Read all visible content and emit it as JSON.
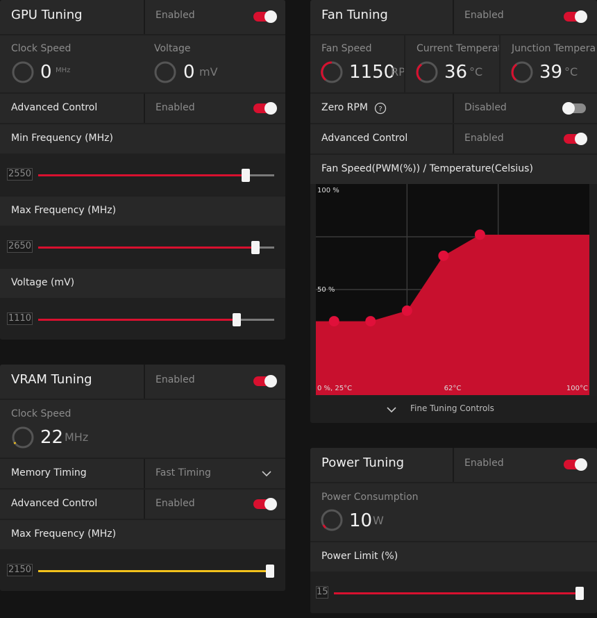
{
  "gpu": {
    "title": "GPU Tuning",
    "status": "Enabled",
    "clock_label": "Clock Speed",
    "clock_value": "0",
    "clock_unit": "MHz",
    "voltage_label": "Voltage",
    "voltage_value": "0",
    "voltage_unit": "mV",
    "advanced_label": "Advanced Control",
    "advanced_status": "Enabled",
    "min_freq_label": "Min Frequency (MHz)",
    "min_freq_value": "2550",
    "min_freq_fraction": 0.88,
    "max_freq_label": "Max Frequency (MHz)",
    "max_freq_value": "2650",
    "max_freq_fraction": 0.92,
    "volt_slider_label": "Voltage (mV)",
    "volt_slider_value": "1110",
    "volt_slider_fraction": 0.84
  },
  "vram": {
    "title": "VRAM Tuning",
    "status": "Enabled",
    "clock_label": "Clock Speed",
    "clock_value": "22",
    "clock_unit": "MHz",
    "timing_label": "Memory Timing",
    "timing_value": "Fast Timing",
    "advanced_label": "Advanced Control",
    "advanced_status": "Enabled",
    "max_freq_label": "Max Frequency (MHz)",
    "max_freq_value": "2150",
    "max_freq_fraction": 1.0
  },
  "fan": {
    "title": "Fan Tuning",
    "status": "Enabled",
    "speed_label": "Fan Speed",
    "speed_value": "1150",
    "speed_unit": "RP",
    "temp_label": "Current Temperatu",
    "temp_value": "36",
    "temp_unit": "°C",
    "junction_label": "Junction Tempera",
    "junction_value": "39",
    "junction_unit": "°C",
    "zero_rpm_label": "Zero RPM",
    "zero_rpm_status": "Disabled",
    "advanced_label": "Advanced Control",
    "advanced_status": "Enabled",
    "curve_label": "Fan Speed(PWM(%)) / Temperature(Celsius)",
    "fine_tuning_label": "Fine Tuning Controls"
  },
  "chart_data": {
    "type": "area",
    "title": "Fan Speed(PWM(%)) / Temperature(Celsius)",
    "xlabel": "",
    "ylabel": "",
    "x_ticks": [
      "0 %, 25°C",
      "62°C",
      "100°C"
    ],
    "y_ticks": [
      "100 %",
      "50 %"
    ],
    "xlim": [
      25,
      100
    ],
    "ylim": [
      0,
      100
    ],
    "points": [
      {
        "x": 30,
        "y": 35
      },
      {
        "x": 40,
        "y": 35
      },
      {
        "x": 50,
        "y": 40
      },
      {
        "x": 60,
        "y": 66
      },
      {
        "x": 70,
        "y": 76
      }
    ],
    "extend_to": 100,
    "color": "#c8102e"
  },
  "power": {
    "title": "Power Tuning",
    "status": "Enabled",
    "consumption_label": "Power Consumption",
    "consumption_value": "10",
    "consumption_unit": "W",
    "limit_label": "Power Limit (%)",
    "limit_value": "15",
    "limit_fraction": 1.0
  },
  "colors": {
    "accent": "#d8102f",
    "vram_slider": "#f3c21c"
  }
}
